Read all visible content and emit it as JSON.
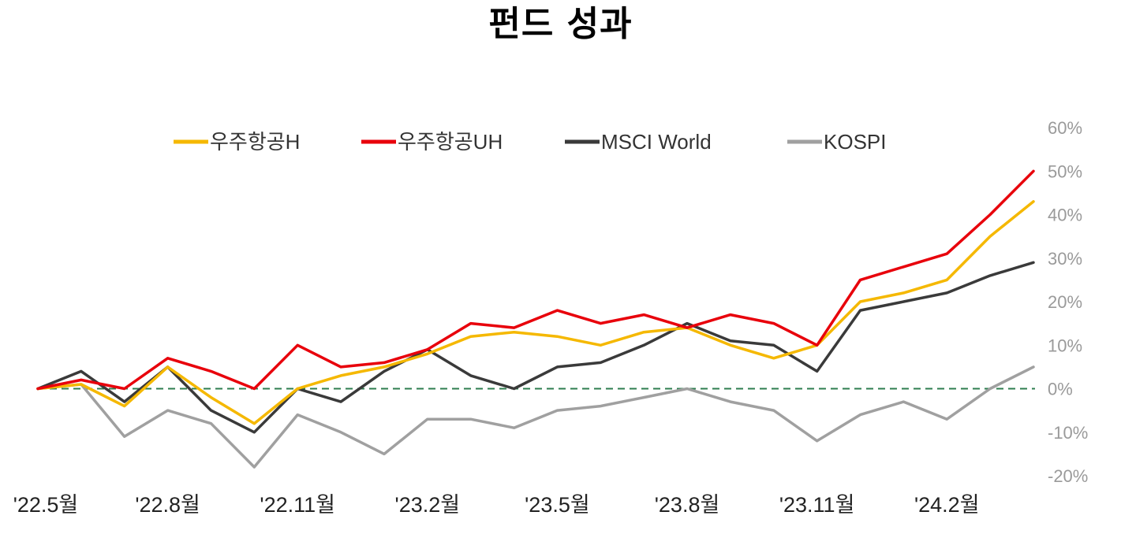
{
  "title": "펀드 성과",
  "chart_data": {
    "type": "line",
    "title": "펀드 성과",
    "xlabel": "",
    "ylabel": "",
    "ylim": [
      -20,
      60
    ],
    "yticks": [
      60,
      50,
      40,
      30,
      20,
      10,
      0,
      -10,
      -20
    ],
    "ytick_labels": [
      "60%",
      "50%",
      "40%",
      "30%",
      "20%",
      "10%",
      "0%",
      "-10%",
      "-20%"
    ],
    "xticks": [
      "'22.5월",
      "'22.8월",
      "'22.11월",
      "'23.2월",
      "'23.5월",
      "'23.8월",
      "'23.11월",
      "'24.2월"
    ],
    "x": [
      "2022-05",
      "2022-06",
      "2022-07",
      "2022-08",
      "2022-09",
      "2022-10",
      "2022-11",
      "2022-12",
      "2023-01",
      "2023-02",
      "2023-03",
      "2023-04",
      "2023-05",
      "2023-06",
      "2023-07",
      "2023-08",
      "2023-09",
      "2023-10",
      "2023-11",
      "2023-12",
      "2024-01",
      "2024-02",
      "2024-03",
      "2024-04"
    ],
    "legend_position": "top",
    "zero_line": {
      "value": 0,
      "color": "#2e7d4f",
      "style": "dashed"
    },
    "series": [
      {
        "name": "우주항공H",
        "color": "#f5b800",
        "values": [
          0,
          1,
          -4,
          5,
          -2,
          -8,
          0,
          3,
          5,
          8,
          12,
          13,
          12,
          10,
          13,
          14,
          10,
          7,
          10,
          20,
          22,
          25,
          35,
          43
        ]
      },
      {
        "name": "우주항공UH",
        "color": "#e8000b",
        "values": [
          0,
          2,
          0,
          7,
          4,
          0,
          10,
          5,
          6,
          9,
          15,
          14,
          18,
          15,
          17,
          14,
          17,
          15,
          10,
          25,
          28,
          31,
          40,
          50
        ]
      },
      {
        "name": "MSCI World",
        "color": "#3a3a3a",
        "values": [
          0,
          4,
          -3,
          5,
          -5,
          -10,
          0,
          -3,
          4,
          9,
          3,
          0,
          5,
          6,
          10,
          15,
          11,
          10,
          4,
          18,
          20,
          22,
          26,
          29
        ]
      },
      {
        "name": "KOSPI",
        "color": "#a0a0a0",
        "values": [
          0,
          1,
          -11,
          -5,
          -8,
          -18,
          -6,
          -10,
          -15,
          -7,
          -7,
          -9,
          -5,
          -4,
          -2,
          0,
          -3,
          -5,
          -12,
          -6,
          -3,
          -7,
          0,
          5
        ]
      }
    ]
  }
}
